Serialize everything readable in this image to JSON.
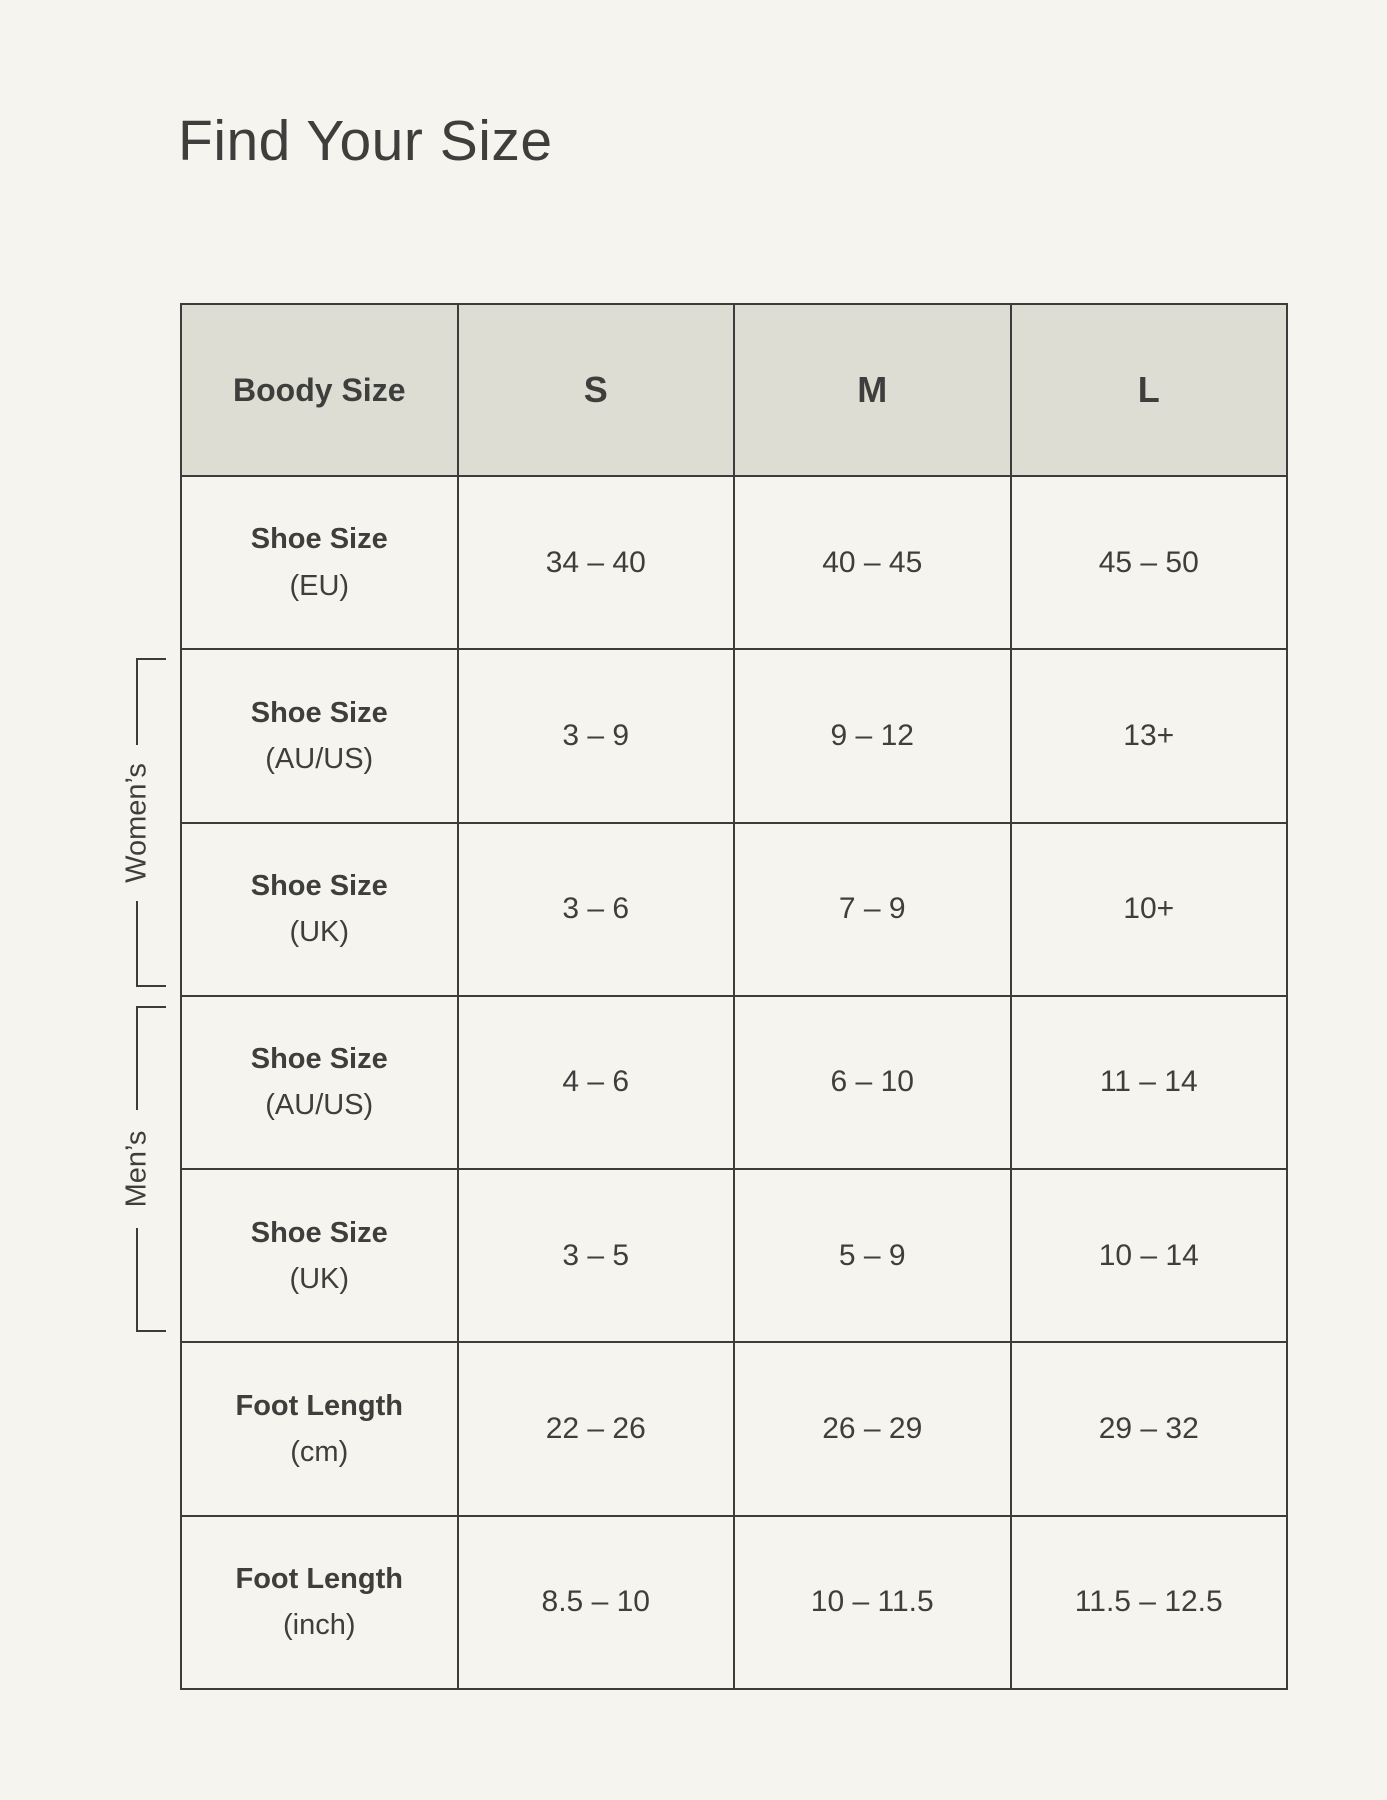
{
  "title": "Find Your Size",
  "colors": {
    "background": "#F5F4EE",
    "header_bg": "#DDDDD4",
    "border": "#3C3C3A",
    "text": "#3E3E3C"
  },
  "table": {
    "header": {
      "label": "Boody Size",
      "sizes": [
        "S",
        "M",
        "L"
      ]
    },
    "rows": [
      {
        "label": "Shoe Size",
        "unit": "(EU)",
        "values": [
          "34 – 40",
          "40 – 45",
          "45 – 50"
        ]
      },
      {
        "label": "Shoe Size",
        "unit": "(AU/US)",
        "values": [
          "3 – 9",
          "9 – 12",
          "13+"
        ]
      },
      {
        "label": "Shoe Size",
        "unit": "(UK)",
        "values": [
          "3 – 6",
          "7 – 9",
          "10+"
        ]
      },
      {
        "label": "Shoe Size",
        "unit": "(AU/US)",
        "values": [
          "4 – 6",
          "6 – 10",
          "11 – 14"
        ]
      },
      {
        "label": "Shoe Size",
        "unit": "(UK)",
        "values": [
          "3 – 5",
          "5 – 9",
          "10 – 14"
        ]
      },
      {
        "label": "Foot Length",
        "unit": "(cm)",
        "values": [
          "22 – 26",
          "26 – 29",
          "29 – 32"
        ]
      },
      {
        "label": "Foot Length",
        "unit": "(inch)",
        "values": [
          "8.5 – 10",
          "10 – 11.5",
          "11.5 – 12.5"
        ]
      }
    ]
  },
  "brackets": {
    "womens_label": "Women’s",
    "mens_label": "Men’s"
  }
}
